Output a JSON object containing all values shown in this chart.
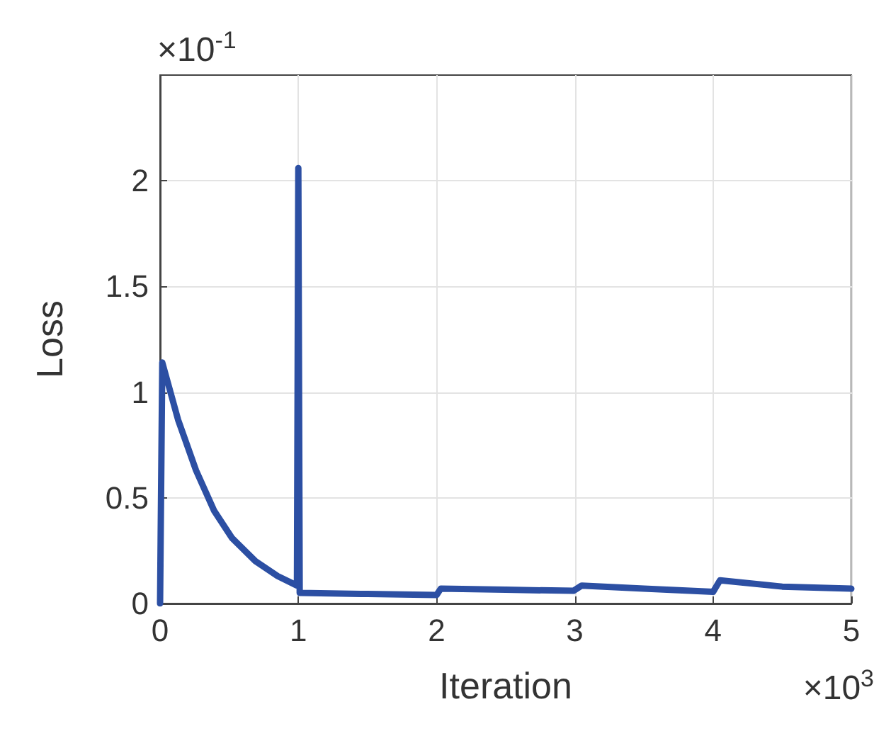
{
  "chart_data": {
    "type": "line",
    "xlabel": "Iteration",
    "ylabel": "Loss",
    "annotations": [
      "×10$^{-1}$",
      "×10$^{3}$"
    ],
    "xlim": [
      0,
      5
    ],
    "xticks": [
      0,
      1,
      2,
      3,
      4,
      5
    ],
    "ylim": [
      0,
      2.5
    ],
    "yticks": [
      0,
      0.5,
      1,
      1.5,
      2
    ],
    "grid": true,
    "line_style": "solid",
    "marker": "none",
    "series": [
      {
        "color": "#2c4fa3",
        "x": [
          0,
          0.016,
          0.13,
          0.26,
          0.39,
          0.52,
          0.69,
          0.85,
          0.99,
          1.0,
          1.01,
          1.5,
          2.0,
          2.03,
          2.5,
          2.99,
          3.05,
          3.5,
          4.0,
          4.05,
          4.5,
          5.0
        ],
        "values": [
          0,
          1.14,
          0.87,
          0.63,
          0.44,
          0.31,
          0.2,
          0.13,
          0.085,
          2.06,
          0.05,
          0.045,
          0.04,
          0.07,
          0.065,
          0.06,
          0.085,
          0.07,
          0.055,
          0.11,
          0.08,
          0.07
        ]
      }
    ]
  }
}
